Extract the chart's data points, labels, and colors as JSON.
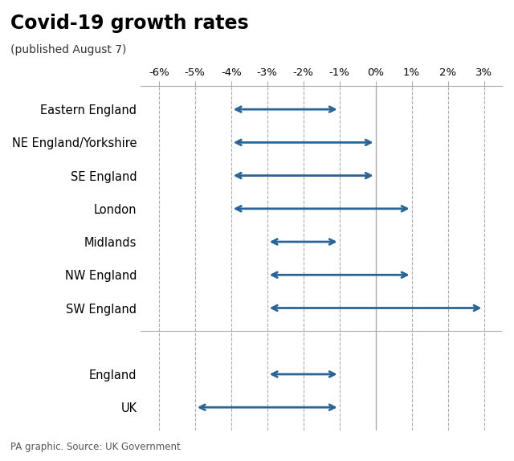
{
  "title": "Covid-19 growth rates",
  "subtitle": "(published August 7)",
  "source": "PA graphic. Source: UK Government",
  "xlim": [
    -6.5,
    3.5
  ],
  "xticks": [
    -6,
    -5,
    -4,
    -3,
    -2,
    -1,
    0,
    1,
    2,
    3
  ],
  "xtick_labels": [
    "-6%",
    "-5%",
    "-4%",
    "-3%",
    "-2%",
    "-1%",
    "0%",
    "1%",
    "2%",
    "3%"
  ],
  "arrow_color": "#2a6496",
  "dashed_line_color": "#888888",
  "solid_line_color": "#aaaaaa",
  "background_color": "#ffffff",
  "regions": [
    {
      "label": "Eastern England",
      "low": -4.0,
      "high": -1.0
    },
    {
      "label": "NE England/Yorkshire",
      "low": -4.0,
      "high": 0.0
    },
    {
      "label": "SE England",
      "low": -4.0,
      "high": 0.0
    },
    {
      "label": "London",
      "low": -4.0,
      "high": 1.0
    },
    {
      "label": "Midlands",
      "low": -3.0,
      "high": -1.0
    },
    {
      "label": "NW England",
      "low": -3.0,
      "high": 1.0
    },
    {
      "label": "SW England",
      "low": -3.0,
      "high": 3.0
    }
  ],
  "summary_regions": [
    {
      "label": "England",
      "low": -3.0,
      "high": -1.0
    },
    {
      "label": "UK",
      "low": -5.0,
      "high": -1.0
    }
  ],
  "dashed_x_positions": [
    -6,
    -5,
    -4,
    -3,
    -2,
    -1,
    1,
    2,
    3
  ],
  "zero_line_x": 0
}
